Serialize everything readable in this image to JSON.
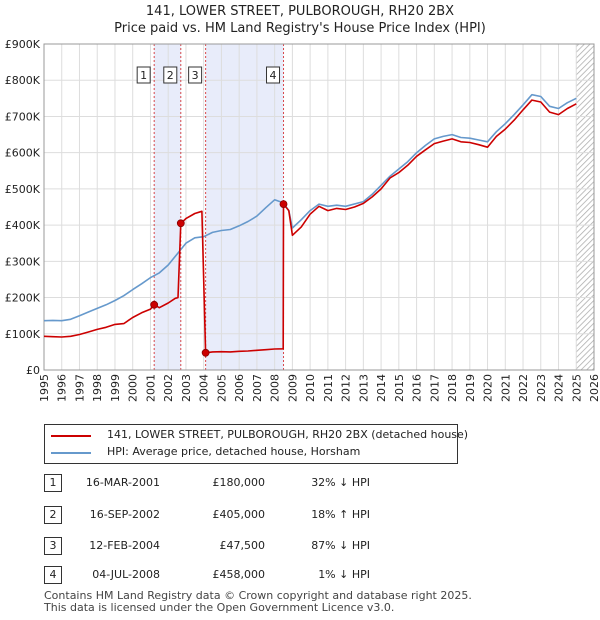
{
  "chart_data": {
    "type": "line",
    "title": "141, LOWER STREET, PULBOROUGH, RH20 2BX",
    "subtitle": "Price paid vs. HM Land Registry's House Price Index (HPI)",
    "xlabel": "",
    "ylabel": "",
    "xlim": [
      1995,
      2026
    ],
    "ylim": [
      0,
      900000
    ],
    "x_ticks": [
      "1995",
      "1996",
      "1997",
      "1998",
      "1999",
      "2000",
      "2001",
      "2002",
      "2003",
      "2004",
      "2005",
      "2006",
      "2007",
      "2008",
      "2009",
      "2010",
      "2011",
      "2012",
      "2013",
      "2014",
      "2015",
      "2016",
      "2017",
      "2018",
      "2019",
      "2020",
      "2021",
      "2022",
      "2023",
      "2024",
      "2025",
      "2026"
    ],
    "y_ticks": [
      {
        "value": 0,
        "label": "£0"
      },
      {
        "value": 100000,
        "label": "£100K"
      },
      {
        "value": 200000,
        "label": "£200K"
      },
      {
        "value": 300000,
        "label": "£300K"
      },
      {
        "value": 400000,
        "label": "£400K"
      },
      {
        "value": 500000,
        "label": "£500K"
      },
      {
        "value": 600000,
        "label": "£600K"
      },
      {
        "value": 700000,
        "label": "£700K"
      },
      {
        "value": 800000,
        "label": "£800K"
      },
      {
        "value": 900000,
        "label": "£900K"
      }
    ],
    "grid": true,
    "series": [
      {
        "name": "141, LOWER STREET, PULBOROUGH, RH20 2BX (detached house)",
        "color": "#cc0000",
        "points": [
          [
            1995.0,
            93000
          ],
          [
            1995.5,
            92000
          ],
          [
            1996.0,
            91000
          ],
          [
            1996.5,
            93000
          ],
          [
            1997.0,
            98000
          ],
          [
            1997.5,
            105000
          ],
          [
            1998.0,
            112000
          ],
          [
            1998.5,
            118000
          ],
          [
            1999.0,
            126000
          ],
          [
            1999.5,
            128000
          ],
          [
            2000.0,
            145000
          ],
          [
            2000.5,
            158000
          ],
          [
            2001.0,
            168000
          ],
          [
            2001.21,
            180000
          ],
          [
            2001.5,
            172000
          ],
          [
            2002.0,
            185000
          ],
          [
            2002.4,
            198000
          ],
          [
            2002.55,
            200000
          ],
          [
            2002.71,
            405000
          ],
          [
            2003.0,
            418000
          ],
          [
            2003.5,
            432000
          ],
          [
            2003.9,
            438000
          ],
          [
            2004.11,
            47500
          ],
          [
            2004.5,
            50000
          ],
          [
            2005.0,
            50500
          ],
          [
            2005.5,
            50000
          ],
          [
            2006.0,
            51500
          ],
          [
            2006.5,
            52500
          ],
          [
            2007.0,
            54500
          ],
          [
            2007.5,
            56000
          ],
          [
            2008.0,
            58000
          ],
          [
            2008.48,
            58500
          ],
          [
            2008.5,
            458000
          ],
          [
            2008.8,
            440000
          ],
          [
            2009.0,
            372000
          ],
          [
            2009.5,
            395000
          ],
          [
            2010.0,
            430000
          ],
          [
            2010.5,
            452000
          ],
          [
            2011.0,
            440000
          ],
          [
            2011.5,
            446000
          ],
          [
            2012.0,
            443000
          ],
          [
            2012.5,
            450000
          ],
          [
            2013.0,
            460000
          ],
          [
            2013.5,
            478000
          ],
          [
            2014.0,
            500000
          ],
          [
            2014.5,
            530000
          ],
          [
            2015.0,
            545000
          ],
          [
            2015.5,
            565000
          ],
          [
            2016.0,
            590000
          ],
          [
            2016.5,
            608000
          ],
          [
            2017.0,
            625000
          ],
          [
            2017.5,
            632000
          ],
          [
            2018.0,
            638000
          ],
          [
            2018.5,
            630000
          ],
          [
            2019.0,
            628000
          ],
          [
            2019.5,
            622000
          ],
          [
            2020.0,
            615000
          ],
          [
            2020.5,
            645000
          ],
          [
            2021.0,
            665000
          ],
          [
            2021.5,
            690000
          ],
          [
            2022.0,
            718000
          ],
          [
            2022.5,
            745000
          ],
          [
            2023.0,
            740000
          ],
          [
            2023.5,
            712000
          ],
          [
            2024.0,
            705000
          ],
          [
            2024.5,
            722000
          ],
          [
            2025.0,
            735000
          ]
        ]
      },
      {
        "name": "HPI: Average price, detached house, Horsham",
        "color": "#6699cc",
        "points": [
          [
            1995.0,
            136000
          ],
          [
            1995.5,
            137000
          ],
          [
            1996.0,
            136000
          ],
          [
            1996.5,
            140000
          ],
          [
            1997.0,
            150000
          ],
          [
            1997.5,
            160000
          ],
          [
            1998.0,
            170000
          ],
          [
            1998.5,
            180000
          ],
          [
            1999.0,
            192000
          ],
          [
            1999.5,
            205000
          ],
          [
            2000.0,
            222000
          ],
          [
            2000.5,
            238000
          ],
          [
            2001.0,
            255000
          ],
          [
            2001.5,
            268000
          ],
          [
            2002.0,
            290000
          ],
          [
            2002.5,
            320000
          ],
          [
            2003.0,
            350000
          ],
          [
            2003.5,
            365000
          ],
          [
            2004.0,
            368000
          ],
          [
            2004.5,
            380000
          ],
          [
            2005.0,
            385000
          ],
          [
            2005.5,
            388000
          ],
          [
            2006.0,
            398000
          ],
          [
            2006.5,
            410000
          ],
          [
            2007.0,
            425000
          ],
          [
            2007.5,
            448000
          ],
          [
            2008.0,
            470000
          ],
          [
            2008.48,
            462000
          ],
          [
            2008.8,
            440000
          ],
          [
            2009.0,
            392000
          ],
          [
            2009.5,
            415000
          ],
          [
            2010.0,
            440000
          ],
          [
            2010.5,
            458000
          ],
          [
            2011.0,
            452000
          ],
          [
            2011.5,
            455000
          ],
          [
            2012.0,
            452000
          ],
          [
            2013.0,
            465000
          ],
          [
            2013.5,
            485000
          ],
          [
            2014.0,
            510000
          ],
          [
            2014.5,
            535000
          ],
          [
            2015.0,
            555000
          ],
          [
            2015.5,
            575000
          ],
          [
            2016.0,
            600000
          ],
          [
            2016.5,
            620000
          ],
          [
            2017.0,
            638000
          ],
          [
            2017.5,
            645000
          ],
          [
            2018.0,
            650000
          ],
          [
            2018.5,
            642000
          ],
          [
            2019.0,
            640000
          ],
          [
            2019.5,
            635000
          ],
          [
            2020.0,
            630000
          ],
          [
            2020.5,
            658000
          ],
          [
            2021.0,
            680000
          ],
          [
            2021.5,
            705000
          ],
          [
            2022.0,
            732000
          ],
          [
            2022.5,
            760000
          ],
          [
            2023.0,
            755000
          ],
          [
            2023.5,
            728000
          ],
          [
            2024.0,
            722000
          ],
          [
            2024.5,
            738000
          ],
          [
            2025.0,
            750000
          ]
        ]
      }
    ],
    "sales": [
      {
        "id": "1",
        "x": 2001.21,
        "y": 180000
      },
      {
        "id": "2",
        "x": 2002.71,
        "y": 405000
      },
      {
        "id": "3",
        "x": 2004.11,
        "y": 47500
      },
      {
        "id": "4",
        "x": 2008.5,
        "y": 458000
      }
    ],
    "shaded_ranges": [
      [
        2001.21,
        2002.71
      ],
      [
        2004.11,
        2008.5
      ]
    ],
    "hatch_from": 2025.0
  },
  "transactions": [
    {
      "num": "1",
      "date": "16-MAR-2001",
      "price": "£180,000",
      "hpi": "32% ↓ HPI"
    },
    {
      "num": "2",
      "date": "16-SEP-2002",
      "price": "£405,000",
      "hpi": "18% ↑ HPI"
    },
    {
      "num": "3",
      "date": "12-FEB-2004",
      "price": "£47,500",
      "hpi": "87% ↓ HPI"
    },
    {
      "num": "4",
      "date": "04-JUL-2008",
      "price": "£458,000",
      "hpi": "1% ↓ HPI"
    }
  ],
  "footer": {
    "line1": "Contains HM Land Registry data © Crown copyright and database right 2025.",
    "line2": "This data is licensed under the Open Government Licence v3.0."
  }
}
